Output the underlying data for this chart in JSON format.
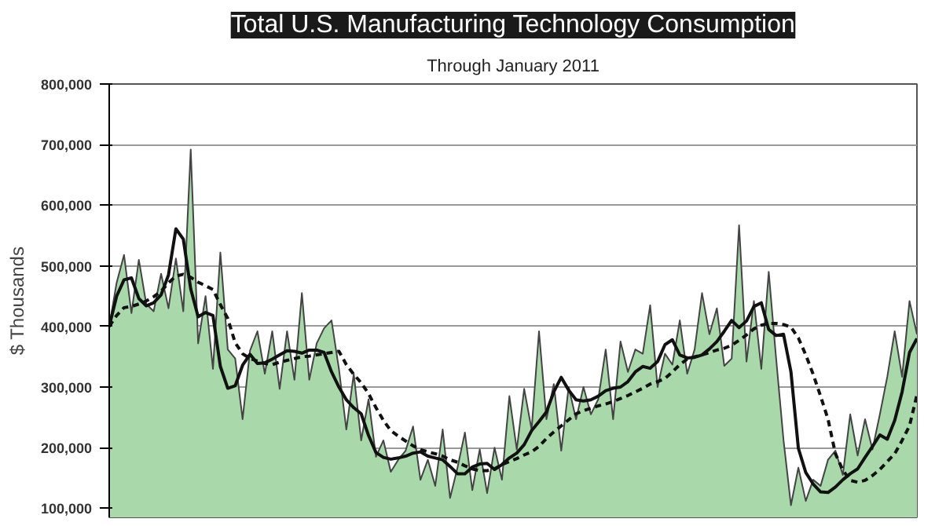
{
  "chart_data": {
    "type": "line",
    "title": "Total U.S. Manufacturing Technology Consumption",
    "subtitle": "Through January 2011",
    "ylabel": "$ Thousands",
    "categories": [
      null,
      null,
      null,
      null,
      null,
      null,
      null,
      null,
      null,
      null,
      null,
      null,
      null,
      null,
      null,
      null,
      null,
      null,
      null,
      null,
      null,
      null,
      null,
      null,
      null,
      null,
      null,
      null,
      null,
      null,
      null,
      null,
      null,
      null,
      null,
      null,
      null,
      null,
      null,
      null,
      null,
      null,
      null,
      null,
      null,
      null,
      null,
      null,
      null,
      null,
      null,
      null,
      null,
      null,
      null,
      null,
      null,
      null,
      null,
      null,
      null,
      null,
      null,
      null,
      null,
      null,
      null,
      null,
      null,
      null,
      null,
      null,
      null,
      null,
      null,
      null,
      null,
      null,
      null,
      null,
      null,
      null,
      null,
      null,
      null,
      null,
      null,
      null,
      null,
      null,
      null,
      null,
      null,
      null,
      null,
      null,
      null,
      null,
      null,
      null,
      null,
      null,
      null,
      null,
      null,
      null,
      null,
      null,
      null,
      null
    ],
    "ylim": [
      85000,
      800000
    ],
    "yticks": [
      {
        "value": 100000,
        "label": "100,000"
      },
      {
        "value": 200000,
        "label": "200,000"
      },
      {
        "value": 300000,
        "label": "300,000"
      },
      {
        "value": 400000,
        "label": "400,000"
      },
      {
        "value": 500000,
        "label": "500,000"
      },
      {
        "value": 600000,
        "label": "600,000"
      },
      {
        "value": 700000,
        "label": "700,000"
      },
      {
        "value": 800000,
        "label": "800,000"
      }
    ],
    "tick_labels": "y",
    "grid": "y",
    "series": [
      {
        "type": "area",
        "color": "#a9d9ab",
        "values": [
          400000,
          472000,
          518000,
          422000,
          510000,
          437000,
          425000,
          487000,
          430000,
          512000,
          425000,
          692000,
          372000,
          450000,
          330000,
          522000,
          362000,
          347000,
          247000,
          360000,
          392000,
          322000,
          392000,
          297000,
          392000,
          312000,
          455000,
          312000,
          372000,
          397000,
          410000,
          330000,
          230000,
          322000,
          212000,
          280000,
          185000,
          212000,
          160000,
          180000,
          195000,
          235000,
          147000,
          180000,
          137000,
          230000,
          117000,
          167000,
          225000,
          130000,
          197000,
          125000,
          200000,
          147000,
          285000,
          197000,
          297000,
          230000,
          392000,
          247000,
          305000,
          195000,
          300000,
          247000,
          300000,
          255000,
          280000,
          362000,
          247000,
          375000,
          325000,
          362000,
          355000,
          435000,
          300000,
          355000,
          337000,
          410000,
          322000,
          362000,
          455000,
          387000,
          430000,
          335000,
          347000,
          567000,
          342000,
          442000,
          330000,
          490000,
          347000,
          212000,
          105000,
          167000,
          112000,
          147000,
          137000,
          180000,
          195000,
          155000,
          255000,
          187000,
          247000,
          197000,
          255000,
          317000,
          392000,
          317000,
          442000,
          387000
        ]
      },
      {
        "color": "#111111",
        "line_style": "solid",
        "values": [
          400000,
          450000,
          477000,
          480000,
          446000,
          434000,
          439000,
          452000,
          485000,
          561000,
          544000,
          462000,
          416000,
          423000,
          418000,
          334000,
          298000,
          302000,
          336000,
          354000,
          339000,
          340000,
          346000,
          353000,
          360000,
          359000,
          356000,
          361000,
          361000,
          357000,
          325000,
          300000,
          279000,
          266000,
          256000,
          220000,
          192000,
          184000,
          181000,
          183000,
          186000,
          191000,
          193000,
          186000,
          183000,
          180000,
          169000,
          157000,
          157000,
          168000,
          173000,
          174000,
          164000,
          172000,
          183000,
          191000,
          205000,
          228000,
          243000,
          259000,
          292000,
          316000,
          295000,
          279000,
          277000,
          279000,
          285000,
          294000,
          298000,
          300000,
          309000,
          325000,
          334000,
          331000,
          342000,
          370000,
          378000,
          353000,
          348000,
          349000,
          353000,
          363000,
          375000,
          392000,
          410000,
          398000,
          409000,
          433000,
          439000,
          395000,
          385000,
          387000,
          325000,
          199000,
          159000,
          140000,
          127000,
          126000,
          135000,
          147000,
          157000,
          165000,
          184000,
          202000,
          221000,
          214000,
          245000,
          292000,
          357000,
          380000
        ]
      },
      {
        "color": "#111111",
        "line_style": "dashed",
        "values": [
          400000,
          418000,
          431000,
          433000,
          437000,
          442000,
          449000,
          458000,
          472000,
          483000,
          486000,
          481000,
          473000,
          467000,
          461000,
          436000,
          413000,
          373000,
          355000,
          347000,
          343000,
          339000,
          337000,
          341000,
          344000,
          347000,
          350000,
          351000,
          353000,
          355000,
          357000,
          359000,
          337000,
          321000,
          307000,
          289000,
          266000,
          245000,
          228000,
          219000,
          211000,
          203000,
          197000,
          193000,
          190000,
          186000,
          180000,
          176000,
          170000,
          165000,
          162000,
          162000,
          165000,
          172000,
          177000,
          182000,
          188000,
          193000,
          202000,
          215000,
          226000,
          236000,
          246000,
          256000,
          261000,
          265000,
          269000,
          272000,
          276000,
          281000,
          286000,
          292000,
          298000,
          305000,
          309000,
          314000,
          325000,
          337000,
          346000,
          350000,
          353000,
          357000,
          361000,
          364000,
          369000,
          377000,
          386000,
          396000,
          402000,
          405000,
          405000,
          403000,
          399000,
          381000,
          353000,
          321000,
          285000,
          247000,
          190000,
          163000,
          146000,
          143000,
          146000,
          154000,
          164000,
          177000,
          190000,
          212000,
          236000,
          287000
        ]
      }
    ]
  }
}
